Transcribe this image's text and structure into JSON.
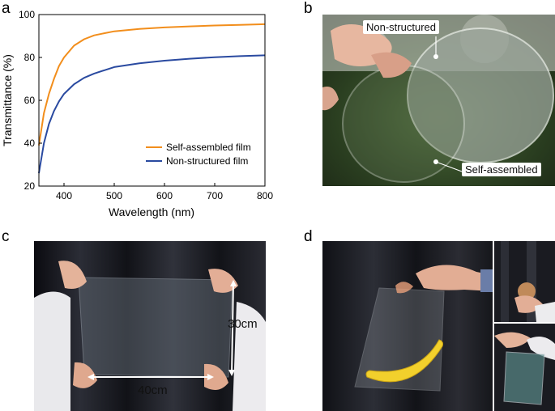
{
  "panels": {
    "a": {
      "letter": "a"
    },
    "b": {
      "letter": "b",
      "labels": [
        "Non-structured",
        "Self-assembled"
      ]
    },
    "c": {
      "letter": "c",
      "width_label": "40cm",
      "height_label": "30cm"
    },
    "d": {
      "letter": "d"
    }
  },
  "chart_data": {
    "type": "line",
    "xlabel": "Wavelength (nm)",
    "ylabel": "Transmittance (%)",
    "xlim": [
      350,
      800
    ],
    "ylim": [
      20,
      100
    ],
    "xticks": [
      400,
      500,
      600,
      700,
      800
    ],
    "yticks": [
      20,
      40,
      60,
      80,
      100
    ],
    "legend_position": "bottom-right",
    "series": [
      {
        "name": "Self-assembled film",
        "color": "#f28e1c",
        "x": [
          350,
          360,
          370,
          380,
          390,
          400,
          420,
          440,
          460,
          480,
          500,
          550,
          600,
          650,
          700,
          750,
          800
        ],
        "y": [
          39,
          54,
          63,
          70,
          76,
          80,
          85.5,
          88.5,
          90.3,
          91.3,
          92.2,
          93.3,
          94,
          94.5,
          94.9,
          95.2,
          95.5
        ]
      },
      {
        "name": "Non-structured film",
        "color": "#2a4aa0",
        "x": [
          350,
          360,
          370,
          380,
          390,
          400,
          420,
          440,
          460,
          480,
          500,
          550,
          600,
          650,
          700,
          750,
          800
        ],
        "y": [
          26,
          40,
          49,
          55,
          59.5,
          63,
          67.5,
          70.5,
          72.5,
          74,
          75.5,
          77.3,
          78.5,
          79.4,
          80.1,
          80.6,
          81
        ]
      }
    ]
  }
}
